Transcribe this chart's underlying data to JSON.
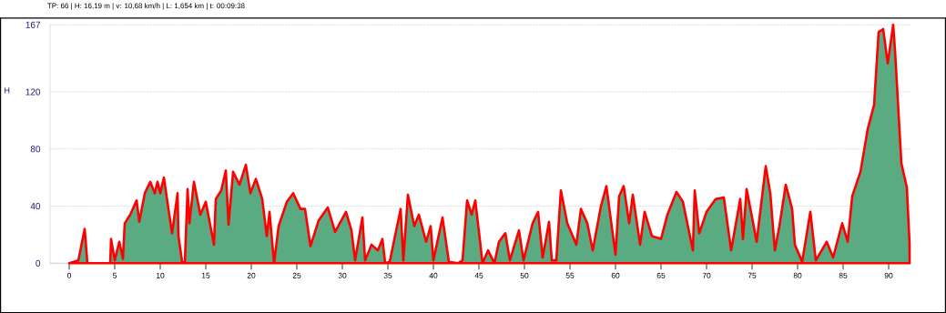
{
  "chart_data": {
    "type": "area",
    "title": "TP: 66 | H: 16,19 m | v: 10,68 km/h | L: 1,654 km | t: 00:09:38",
    "ylabel": "H",
    "x": [
      0,
      1.0,
      1.7,
      2.0,
      4.5,
      4.6,
      5.0,
      5.5,
      5.9,
      6.1,
      6.7,
      7.4,
      7.7,
      8.3,
      8.9,
      9.4,
      9.7,
      10.0,
      10.4,
      10.9,
      11.3,
      11.9,
      12.0,
      12.4,
      12.7,
      13.0,
      13.2,
      13.7,
      14.4,
      15.0,
      15.9,
      16.1,
      16.7,
      17.2,
      17.5,
      18.0,
      18.7,
      19.4,
      19.9,
      20.5,
      21.2,
      21.7,
      22.0,
      22.5,
      23.0,
      23.9,
      24.6,
      25.4,
      25.9,
      26.5,
      27.4,
      28.4,
      29.2,
      30.4,
      31.0,
      31.4,
      32.2,
      32.5,
      33.2,
      33.9,
      34.4,
      34.7,
      35.2,
      36.4,
      36.7,
      37.2,
      37.9,
      38.4,
      39.2,
      39.7,
      40.0,
      41.0,
      41.7,
      42.7,
      43.2,
      43.7,
      44.2,
      44.6,
      45.4,
      46.0,
      46.7,
      47.2,
      47.9,
      48.4,
      49.4,
      49.9,
      50.9,
      51.5,
      52.0,
      52.7,
      53.0,
      53.5,
      54.0,
      54.7,
      55.7,
      56.2,
      56.9,
      57.5,
      58.4,
      59.0,
      60.0,
      60.4,
      60.9,
      61.5,
      61.9,
      62.7,
      63.2,
      64.0,
      65.0,
      65.7,
      66.7,
      67.4,
      68.5,
      68.7,
      69.2,
      70.0,
      71.0,
      71.9,
      72.7,
      73.7,
      74.0,
      74.4,
      75.0,
      75.5,
      76.5,
      77.0,
      77.5,
      78.0,
      78.7,
      79.4,
      79.7,
      80.5,
      81.4,
      82.0,
      83.2,
      83.9,
      84.9,
      85.5,
      86.0,
      86.9,
      87.7,
      88.4,
      88.9,
      89.4,
      89.9,
      90.5,
      90.7,
      91.4,
      92.0,
      92.3
    ],
    "values": [
      0,
      2,
      24,
      0,
      0,
      17,
      2,
      15,
      3,
      28,
      34,
      44,
      29,
      49,
      57,
      49,
      57,
      49,
      60,
      38,
      21,
      49,
      19,
      1,
      0,
      52,
      28,
      57,
      34,
      43,
      13,
      45,
      51,
      65,
      27,
      64,
      55,
      69,
      49,
      59,
      45,
      19,
      36,
      0,
      26,
      43,
      49,
      38,
      38,
      12,
      30,
      39,
      22,
      36,
      23,
      2,
      32,
      2,
      13,
      9,
      17,
      0,
      1,
      38,
      2,
      48,
      26,
      34,
      15,
      26,
      2,
      32,
      1,
      0,
      2,
      44,
      34,
      44,
      0,
      9,
      0,
      15,
      21,
      2,
      23,
      2,
      28,
      36,
      4,
      29,
      2,
      2,
      51,
      28,
      13,
      38,
      28,
      9,
      40,
      54,
      6,
      47,
      54,
      28,
      48,
      13,
      36,
      19,
      17,
      34,
      50,
      43,
      9,
      51,
      21,
      36,
      45,
      46,
      9,
      45,
      17,
      52,
      32,
      15,
      68,
      49,
      9,
      26,
      55,
      38,
      13,
      1,
      36,
      2,
      15,
      4,
      28,
      15,
      47,
      64,
      94,
      111,
      162,
      164,
      140,
      167,
      149,
      70,
      53,
      13
    ],
    "color": "#ff0000",
    "xlim": [
      -2.1,
      92.4
    ],
    "ylim": [
      0,
      167
    ],
    "xticks": [
      0,
      5,
      10,
      15,
      20,
      25,
      30,
      35,
      40,
      45,
      50,
      55,
      60,
      65,
      70,
      75,
      80,
      85,
      90
    ],
    "yticks": [
      0,
      40,
      80,
      120,
      167
    ],
    "grid": "y"
  }
}
